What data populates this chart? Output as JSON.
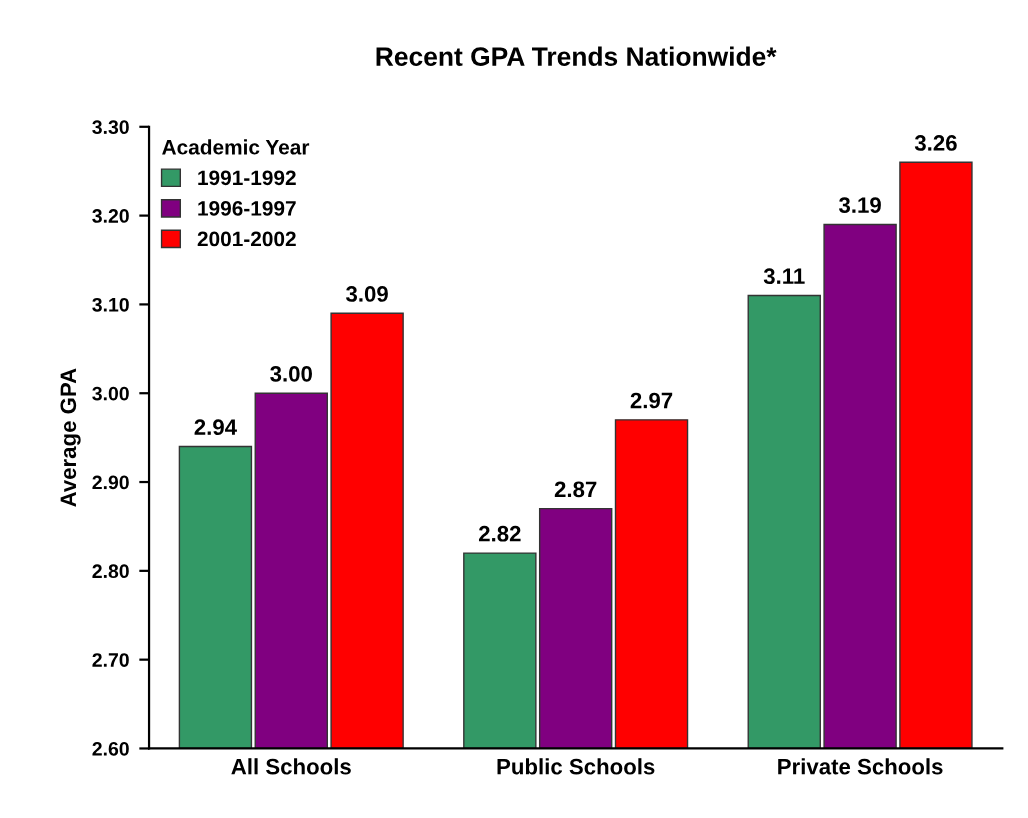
{
  "chart_data": {
    "type": "bar",
    "title": "Recent GPA Trends Nationwide*",
    "ylabel": "Average GPA",
    "legend_title": "Academic Year",
    "legend": "top left",
    "grid": false,
    "categories": [
      "All Schools",
      "Public Schools",
      "Private Schools"
    ],
    "series": [
      {
        "name": "1991-1992",
        "color": "#339966",
        "values": [
          2.94,
          2.82,
          3.11
        ],
        "value_labels": [
          "2.94",
          "2.82",
          "3.11"
        ]
      },
      {
        "name": "1996-1997",
        "color": "#800080",
        "values": [
          3.0,
          2.87,
          3.19
        ],
        "value_labels": [
          "3.00",
          "2.87",
          "3.19"
        ]
      },
      {
        "name": "2001-2002",
        "color": "#ff0000",
        "values": [
          3.09,
          2.97,
          3.26
        ],
        "value_labels": [
          "3.09",
          "2.97",
          "3.26"
        ]
      }
    ],
    "ylim": [
      2.6,
      3.3
    ],
    "yticks": [
      {
        "value": 2.6,
        "label": "2.60"
      },
      {
        "value": 2.7,
        "label": "2.70"
      },
      {
        "value": 2.8,
        "label": "2.80"
      },
      {
        "value": 2.9,
        "label": "2.90"
      },
      {
        "value": 3.0,
        "label": "3.00"
      },
      {
        "value": 3.1,
        "label": "3.10"
      },
      {
        "value": 3.2,
        "label": "3.20"
      },
      {
        "value": 3.3,
        "label": "3.30"
      }
    ]
  }
}
